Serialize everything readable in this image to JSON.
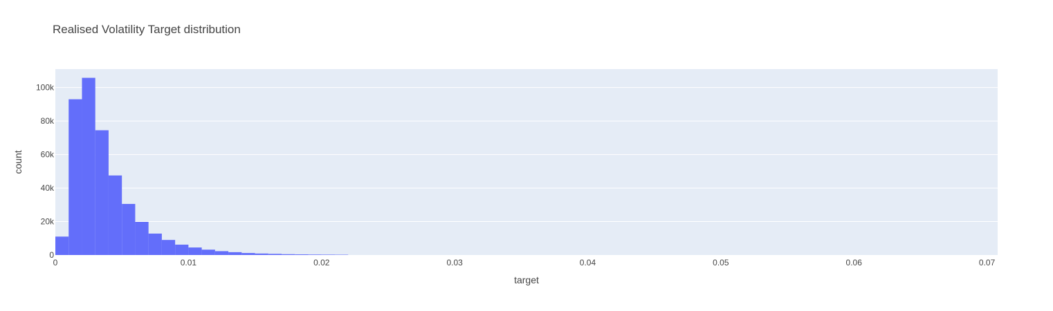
{
  "chart_data": {
    "type": "bar",
    "title": "Realised Volatility Target distribution",
    "xlabel": "target",
    "ylabel": "count",
    "xlim": [
      0,
      0.0708
    ],
    "ylim": [
      0,
      111000
    ],
    "grid": true,
    "bin_width": 0.001,
    "x_ticks": [
      {
        "value": 0,
        "label": "0"
      },
      {
        "value": 0.01,
        "label": "0.01"
      },
      {
        "value": 0.02,
        "label": "0.02"
      },
      {
        "value": 0.03,
        "label": "0.03"
      },
      {
        "value": 0.04,
        "label": "0.04"
      },
      {
        "value": 0.05,
        "label": "0.05"
      },
      {
        "value": 0.06,
        "label": "0.06"
      },
      {
        "value": 0.07,
        "label": "0.07"
      }
    ],
    "y_ticks": [
      {
        "value": 0,
        "label": "0"
      },
      {
        "value": 20000,
        "label": "20k"
      },
      {
        "value": 40000,
        "label": "40k"
      },
      {
        "value": 60000,
        "label": "60k"
      },
      {
        "value": 80000,
        "label": "80k"
      },
      {
        "value": 100000,
        "label": "100k"
      }
    ],
    "bins": [
      {
        "x0": 0.0,
        "count": 11000
      },
      {
        "x0": 0.001,
        "count": 93000
      },
      {
        "x0": 0.002,
        "count": 105800
      },
      {
        "x0": 0.003,
        "count": 74500
      },
      {
        "x0": 0.004,
        "count": 47500
      },
      {
        "x0": 0.005,
        "count": 30500
      },
      {
        "x0": 0.006,
        "count": 19800
      },
      {
        "x0": 0.007,
        "count": 12800
      },
      {
        "x0": 0.008,
        "count": 9000
      },
      {
        "x0": 0.009,
        "count": 6200
      },
      {
        "x0": 0.01,
        "count": 4500
      },
      {
        "x0": 0.011,
        "count": 3200
      },
      {
        "x0": 0.012,
        "count": 2300
      },
      {
        "x0": 0.013,
        "count": 1700
      },
      {
        "x0": 0.014,
        "count": 1200
      },
      {
        "x0": 0.015,
        "count": 900
      },
      {
        "x0": 0.016,
        "count": 700
      },
      {
        "x0": 0.017,
        "count": 500
      },
      {
        "x0": 0.018,
        "count": 400
      },
      {
        "x0": 0.019,
        "count": 300
      },
      {
        "x0": 0.02,
        "count": 250
      },
      {
        "x0": 0.021,
        "count": 200
      }
    ],
    "colors": {
      "bar": "#636efa",
      "plot_bg": "#e5ecf6",
      "grid": "#ffffff",
      "text": "#444444"
    }
  }
}
